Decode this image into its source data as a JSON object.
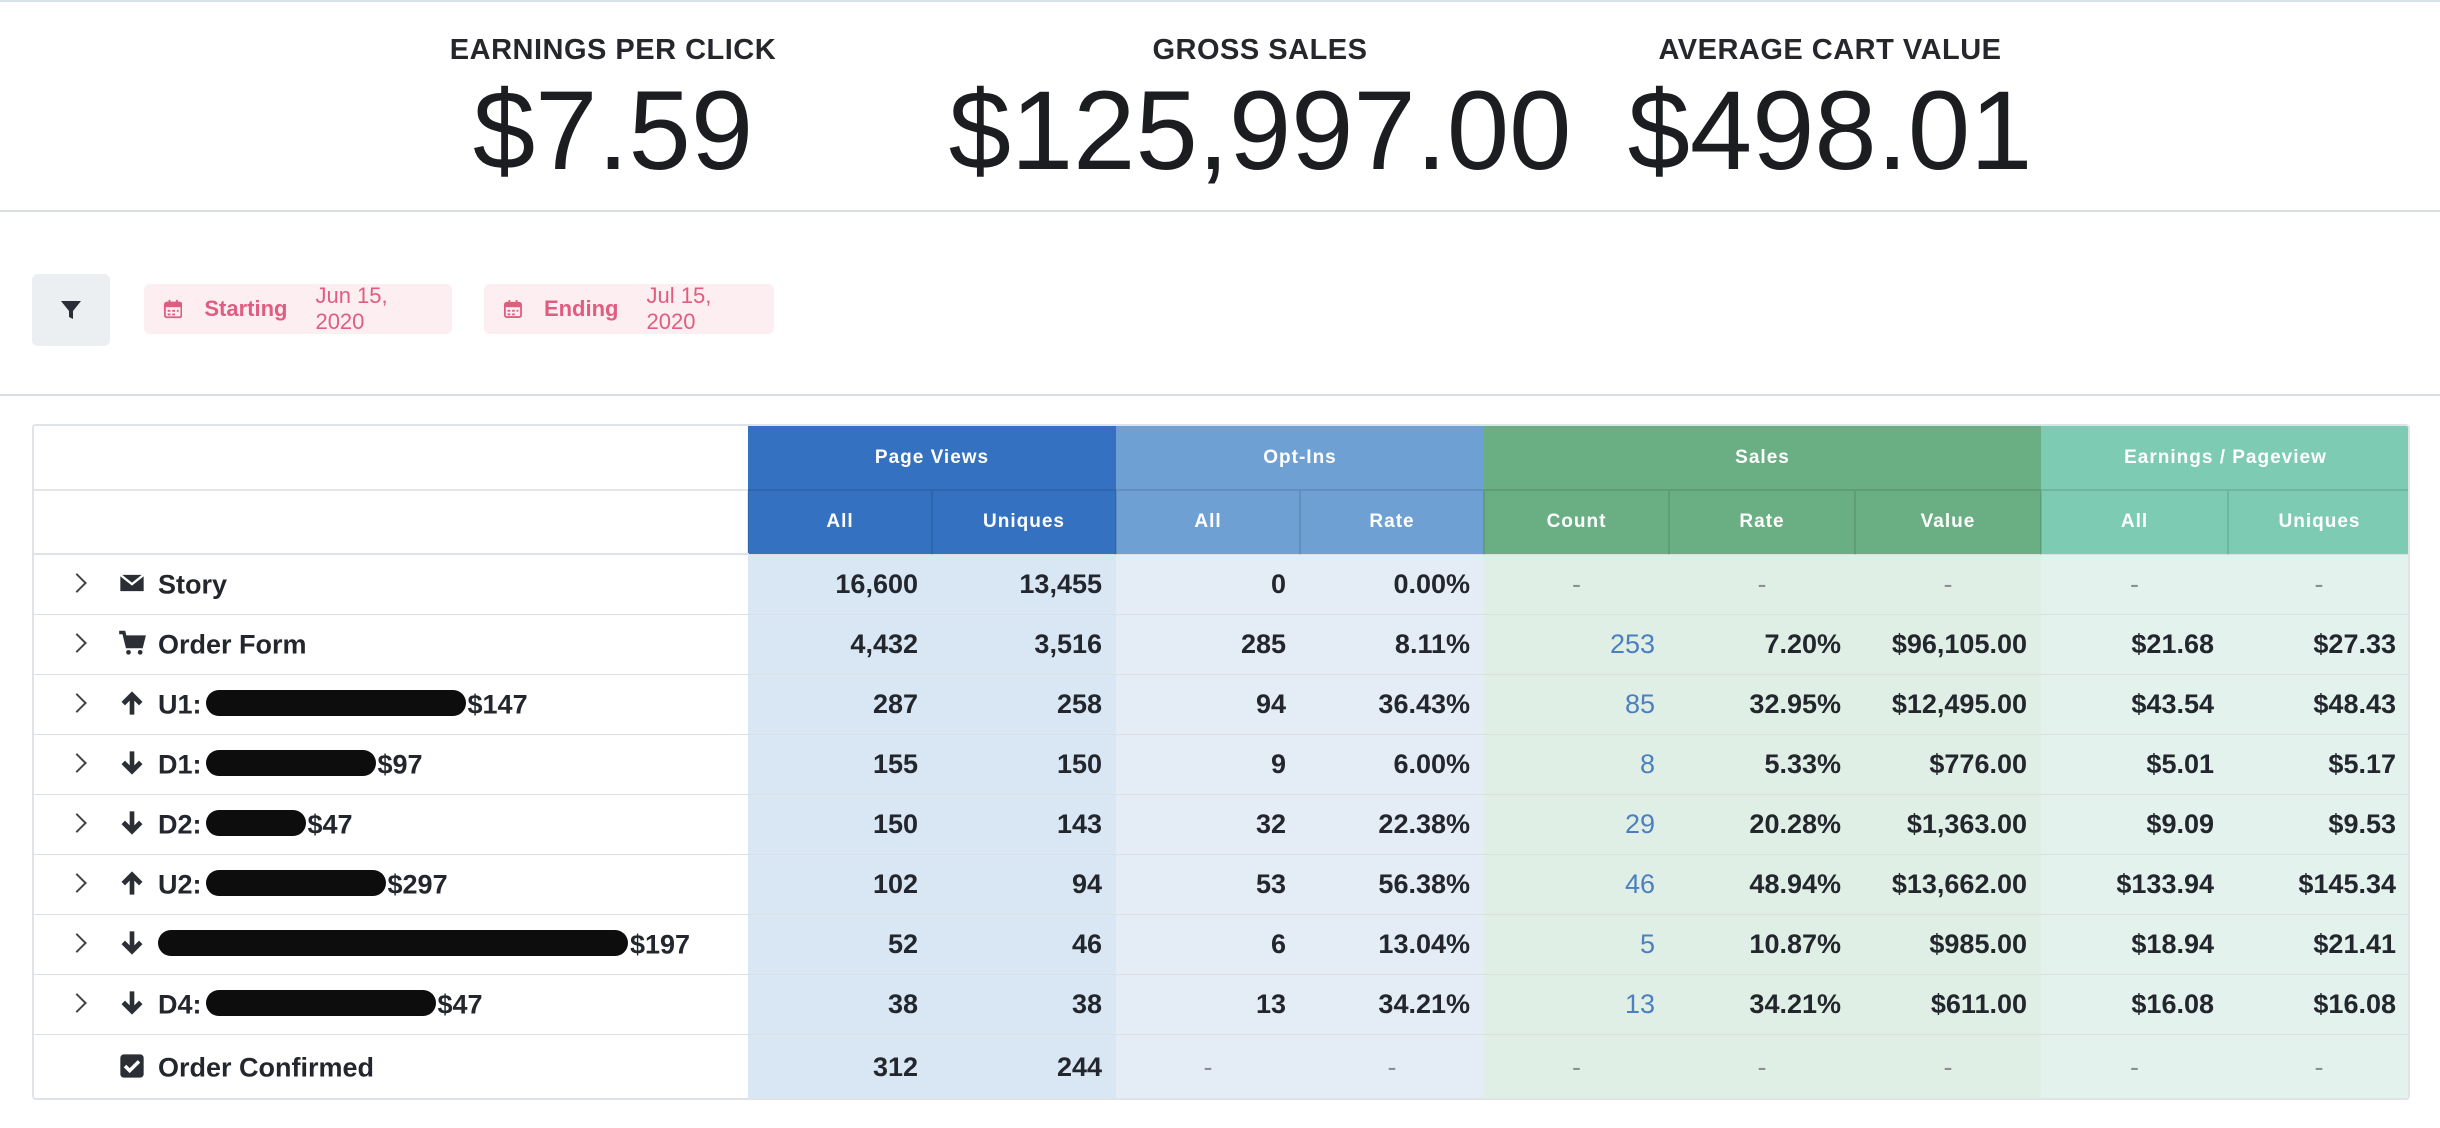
{
  "stats": [
    {
      "label": "EARNINGS PER CLICK",
      "value": "$7.59"
    },
    {
      "label": "GROSS SALES",
      "value": "$125,997.00"
    },
    {
      "label": "AVERAGE CART VALUE",
      "value": "$498.01"
    }
  ],
  "filters": {
    "filter_icon": "filter-icon",
    "starting": {
      "label": "Starting",
      "date": "Jun 15, 2020"
    },
    "ending": {
      "label": "Ending",
      "date": "Jul 15, 2020"
    },
    "accent": "#e05d80"
  },
  "table": {
    "groups": [
      "Page Views",
      "Opt-Ins",
      "Sales",
      "Earnings / Pageview"
    ],
    "subheaders": [
      "All",
      "Uniques",
      "All",
      "Rate",
      "Count",
      "Rate",
      "Value",
      "All",
      "Uniques"
    ],
    "colors": {
      "page_views": "#3471c0",
      "opt_ins": "#6ea0d3",
      "sales": "#6aaf84",
      "earnings": "#7dcbb2"
    },
    "rows": [
      {
        "icon": "envelope-icon",
        "prefix": "Story",
        "suffix": "",
        "redacted": false,
        "expandable": true,
        "cells": [
          "16,600",
          "13,455",
          "0",
          "0.00%",
          "-",
          "-",
          "-",
          "-",
          "-"
        ]
      },
      {
        "icon": "cart-icon",
        "prefix": "Order Form",
        "suffix": "",
        "redacted": false,
        "expandable": true,
        "cells": [
          "4,432",
          "3,516",
          "285",
          "8.11%",
          "253",
          "7.20%",
          "$96,105.00",
          "$21.68",
          "$27.33"
        ]
      },
      {
        "icon": "arrow-up-icon",
        "prefix": "U1:",
        "suffix": "$147",
        "redacted": true,
        "expandable": true,
        "cells": [
          "287",
          "258",
          "94",
          "36.43%",
          "85",
          "32.95%",
          "$12,495.00",
          "$43.54",
          "$48.43"
        ]
      },
      {
        "icon": "arrow-down-icon",
        "prefix": "D1:",
        "suffix": "$97",
        "redacted": true,
        "expandable": true,
        "cells": [
          "155",
          "150",
          "9",
          "6.00%",
          "8",
          "5.33%",
          "$776.00",
          "$5.01",
          "$5.17"
        ]
      },
      {
        "icon": "arrow-down-icon",
        "prefix": "D2:",
        "suffix": "$47",
        "redacted": true,
        "expandable": true,
        "cells": [
          "150",
          "143",
          "32",
          "22.38%",
          "29",
          "20.28%",
          "$1,363.00",
          "$9.09",
          "$9.53"
        ]
      },
      {
        "icon": "arrow-up-icon",
        "prefix": "U2:",
        "suffix": "$297",
        "redacted": true,
        "expandable": true,
        "cells": [
          "102",
          "94",
          "53",
          "56.38%",
          "46",
          "48.94%",
          "$13,662.00",
          "$133.94",
          "$145.34"
        ]
      },
      {
        "icon": "arrow-down-icon",
        "prefix": "",
        "suffix": "$197",
        "redacted": true,
        "expandable": true,
        "cells": [
          "52",
          "46",
          "6",
          "13.04%",
          "5",
          "10.87%",
          "$985.00",
          "$18.94",
          "$21.41"
        ]
      },
      {
        "icon": "arrow-down-icon",
        "prefix": "D4:",
        "suffix": "$47",
        "redacted": true,
        "expandable": true,
        "cells": [
          "38",
          "38",
          "13",
          "34.21%",
          "13",
          "34.21%",
          "$611.00",
          "$16.08",
          "$16.08"
        ]
      },
      {
        "icon": "check-square-icon",
        "prefix": "Order Confirmed",
        "suffix": "",
        "redacted": false,
        "expandable": false,
        "cells": [
          "312",
          "244",
          "-",
          "-",
          "-",
          "-",
          "-",
          "-",
          "-"
        ]
      }
    ]
  }
}
